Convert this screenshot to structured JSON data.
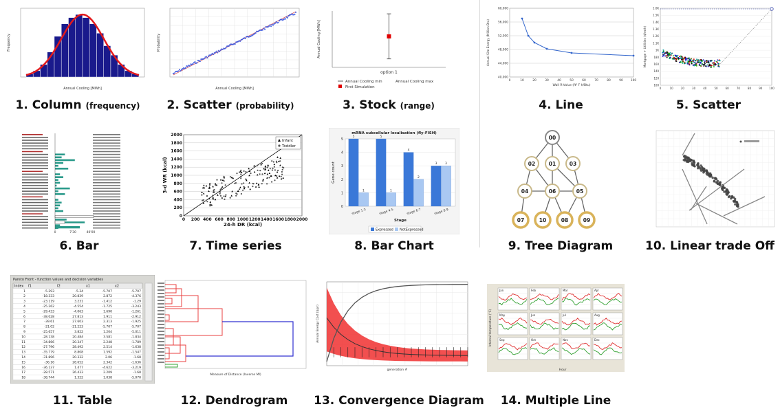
{
  "thumbnails": [
    {
      "caption": "1. Column",
      "sub": "(frequency)"
    },
    {
      "caption": "2. Scatter",
      "sub": "(probability)"
    },
    {
      "caption": "3. Stock",
      "sub": "(range)"
    },
    {
      "caption": "4. Line",
      "sub": ""
    },
    {
      "caption": "5. Scatter",
      "sub": ""
    },
    {
      "caption": "6. Bar",
      "sub": ""
    },
    {
      "caption": "7. Time series",
      "sub": ""
    },
    {
      "caption": "8. Bar Chart",
      "sub": ""
    },
    {
      "caption": "9. Tree Diagram",
      "sub": ""
    },
    {
      "caption": "10. Linear trade Off",
      "sub": ""
    },
    {
      "caption": "11. Table",
      "sub": ""
    },
    {
      "caption": "12. Dendrogram",
      "sub": ""
    },
    {
      "caption": "13. Convergence Diagram",
      "sub": ""
    },
    {
      "caption": "14. Multiple Line",
      "sub": ""
    }
  ],
  "chart_data": [
    {
      "type": "bar",
      "xlabel": "Annual Cooling [MWh]",
      "ylabel": "Frequency",
      "categories": [
        "0",
        "5000",
        "10000",
        "15000",
        "20000",
        "25000",
        "30000",
        "35000",
        "40000",
        "45000",
        "50000",
        "55000",
        "60000",
        "65000",
        "70000",
        "75000"
      ],
      "values": [
        1,
        2,
        4,
        8,
        13,
        17,
        19,
        20,
        19,
        17,
        14,
        10,
        7,
        4,
        2,
        1
      ],
      "series_colors": [
        "#1a1a8c",
        "#e31a1c"
      ]
    },
    {
      "type": "scatter",
      "xlabel": "Annual Cooling [MWh]",
      "ylabel": "Probability",
      "x": [
        10000,
        20000,
        30000,
        40000,
        50000,
        60000,
        70000,
        80000
      ],
      "y": [
        0.001,
        0.05,
        0.2,
        0.5,
        0.8,
        0.95,
        0.99,
        0.997
      ],
      "series_colors": [
        "#3050e0"
      ]
    },
    {
      "type": "scatter",
      "ylabel": "Annual Cooling [MWh]",
      "categories": [
        "option 1"
      ],
      "legend": [
        "Annual Cooling min",
        "Annual Cooling max",
        "First Simulation"
      ],
      "values": [
        {
          "min": 0.15,
          "max": 0.95,
          "first": 0.55
        }
      ],
      "series_colors": [
        "#333333",
        "#e00000"
      ]
    },
    {
      "type": "line",
      "xlabel": "Wall R-Value (ft² F h/Btu)",
      "ylabel": "Annual Site Energy (Million Btu)",
      "x": [
        10,
        15,
        20,
        30,
        50,
        100
      ],
      "y": [
        57000,
        52000,
        50000,
        48200,
        47000,
        46200
      ],
      "y_ticks": [
        "40,000",
        "44,000",
        "48,000",
        "52,000",
        "56,000",
        "60,000"
      ],
      "x_ticks": [
        "0",
        "10",
        "20",
        "30",
        "40",
        "50",
        "60",
        "70",
        "80",
        "90",
        "100"
      ],
      "ylim": [
        40000,
        60000
      ],
      "xlim": [
        0,
        100
      ],
      "series_colors": [
        "#3366cc"
      ]
    },
    {
      "type": "scatter",
      "ylabel": "Mortgage + Utilities ($/mth)",
      "x_ticks": [
        "0",
        "10",
        "20",
        "30",
        "40",
        "50",
        "60",
        "70",
        "80",
        "90",
        "100"
      ],
      "y_ticks": [
        "100",
        "120",
        "140",
        "160",
        "180",
        "1K",
        "1.1K",
        "1.2K",
        "1.3K",
        "1.4K",
        "1.5K",
        "1.6K"
      ],
      "xlim": [
        0,
        100
      ],
      "series_colors": [
        "#c00000",
        "#00a000",
        "#0000c0",
        "#00a0a0",
        "#000000"
      ]
    },
    {
      "type": "bar",
      "x_ticks": [
        "0",
        "7'30",
        "40'00"
      ],
      "series_colors": [
        "#2a9a8a",
        "#ffffff"
      ]
    },
    {
      "type": "scatter",
      "xlabel": "24-h DR (kcal)",
      "ylabel": "3-d WR (kcal)",
      "legend": [
        "Infant",
        "Toddler"
      ],
      "x_ticks": [
        "0",
        "200",
        "400",
        "600",
        "800",
        "1000",
        "1200",
        "1400",
        "1600",
        "1800",
        "2000"
      ],
      "y_ticks": [
        "0",
        "200",
        "400",
        "600",
        "800",
        "1000",
        "1200",
        "1400",
        "1600",
        "1800",
        "2000"
      ],
      "xlim": [
        0,
        2000
      ],
      "ylim": [
        0,
        2000
      ],
      "series_colors": [
        "#000000",
        "#555555"
      ]
    },
    {
      "type": "bar",
      "title": "mRNA subcellular localisation (fly-FISH)",
      "xlabel": "Stage",
      "ylabel": "Gene count",
      "categories": [
        "stage 1-3",
        "stage 4-5",
        "stage 6-7",
        "stage 8-9"
      ],
      "series": [
        {
          "name": "Expressed",
          "values": [
            5,
            5,
            4,
            3
          ]
        },
        {
          "name": "NotExpressed",
          "values": [
            1,
            1,
            2,
            3
          ]
        }
      ],
      "ylim": [
        0,
        5
      ],
      "series_colors": [
        "#3a78d8",
        "#a9c8f2"
      ]
    },
    {
      "type": "table",
      "title": "Pareto Front - function values and decision variables",
      "columns": [
        "Index",
        "f1",
        "f2",
        "x1",
        "x2"
      ],
      "rows": [
        [
          "1",
          "-5.293",
          "-5.34",
          "-5.707",
          "-5.707"
        ],
        [
          "2",
          "-18.333",
          "20.839",
          "2.872",
          "-4.376"
        ],
        [
          "3",
          "-23.119",
          "3.231",
          "-1.412",
          "-1.29"
        ],
        [
          "4",
          "-25.262",
          "-4.554",
          "-1.725",
          "-3.243"
        ],
        [
          "5",
          "-29.433",
          "-4.063",
          "1.690",
          "-1.261"
        ],
        [
          "6",
          "-38.028",
          "27.813",
          "1.911",
          "-2.912"
        ],
        [
          "7",
          "-39.61",
          "27.603",
          "2.313",
          "-1.925"
        ],
        [
          "8",
          "-21.02",
          "-21.223",
          "-5.707",
          "-5.707"
        ],
        [
          "9",
          "-25.657",
          "3.822",
          "1.204",
          "-5.011"
        ],
        [
          "10",
          "-28.138",
          "20.484",
          "3.581",
          "-1.834"
        ],
        [
          "11",
          "-34.866",
          "20.347",
          "2.248",
          "-1.789"
        ],
        [
          "12",
          "-27.796",
          "28.492",
          "2.514",
          "-1.638"
        ],
        [
          "13",
          "-35.779",
          "8.808",
          "1.592",
          "-1.547"
        ],
        [
          "14",
          "-31.896",
          "20.332",
          "2.06",
          "-1.68"
        ],
        [
          "15",
          "-36.16",
          "28.652",
          "2.342",
          "-1.636"
        ],
        [
          "16",
          "-36.137",
          "1.477",
          "-4.622",
          "-3.219"
        ],
        [
          "17",
          "-28.571",
          "26.433",
          "2.209",
          "-1.68"
        ],
        [
          "18",
          "-38.744",
          "1.322",
          "1.038",
          "-5.070"
        ]
      ]
    },
    {
      "type": "line",
      "xlabel": "Measure of Distance (Inverse MI)",
      "series_colors": [
        "#e84040",
        "#3030d0",
        "#30a030"
      ]
    },
    {
      "type": "area",
      "xlabel": "generation #",
      "ylabel": "Annual Energy Cost ($/yr)",
      "series_colors": [
        "#f03030",
        "#555555"
      ]
    },
    {
      "type": "line",
      "xlabel": "Hour",
      "ylabel": "Internal temperature (°C)",
      "panel_titles": [
        "Jan",
        "Feb",
        "Mar",
        "Apr",
        "May",
        "Jun",
        "Jul",
        "Aug",
        "Sep",
        "Oct",
        "Nov",
        "Dec"
      ],
      "series_colors": [
        "#e03030",
        "#30a030"
      ]
    }
  ]
}
